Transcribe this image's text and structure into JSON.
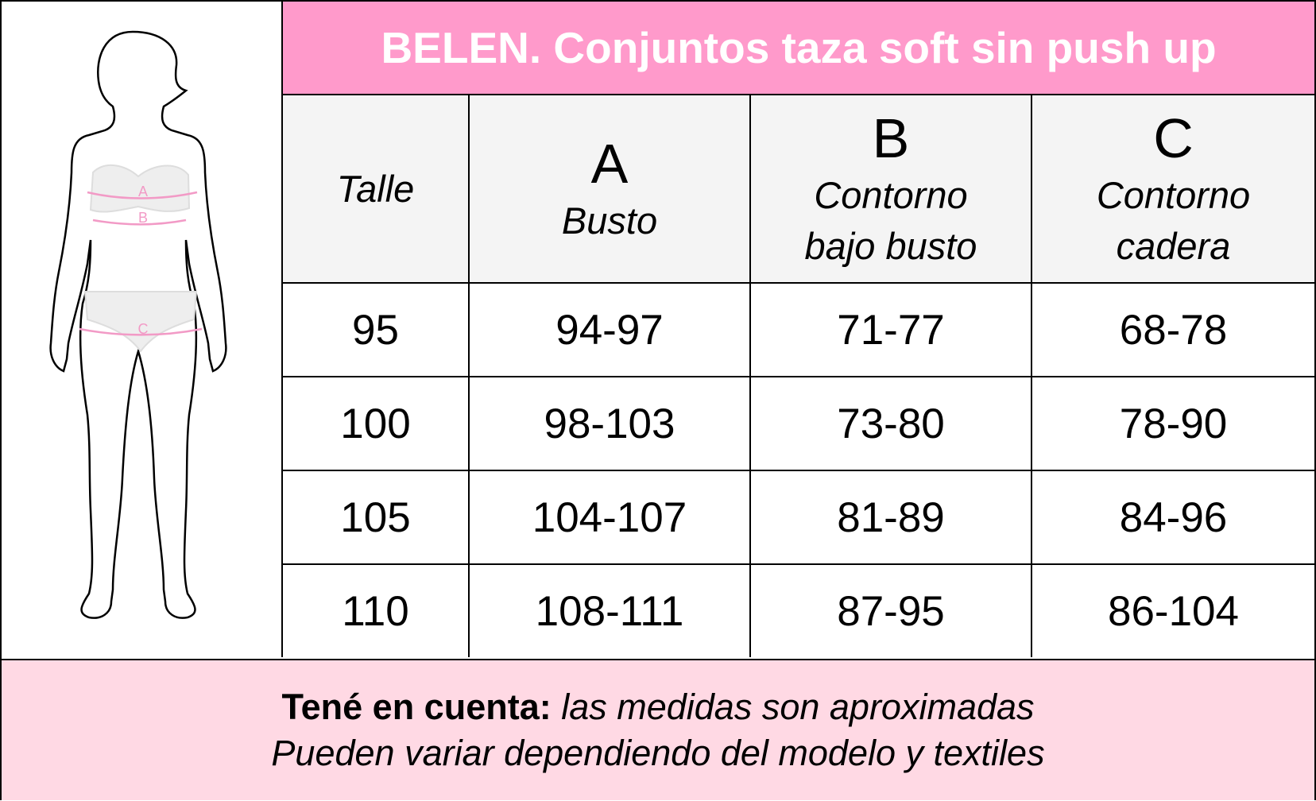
{
  "title": "BELEN. Conjuntos taza soft sin push up",
  "figure": {
    "labels": [
      "A",
      "B",
      "C"
    ],
    "accent_color": "#f29ac6"
  },
  "table": {
    "headers": [
      {
        "letter": "",
        "label": "Talle"
      },
      {
        "letter": "A",
        "label": "Busto"
      },
      {
        "letter": "B",
        "label": "Contorno bajo busto"
      },
      {
        "letter": "C",
        "label": "Contorno cadera"
      }
    ],
    "rows": [
      [
        "95",
        "94-97",
        "71-77",
        "68-78"
      ],
      [
        "100",
        "98-103",
        "73-80",
        "78-90"
      ],
      [
        "105",
        "104-107",
        "81-89",
        "84-96"
      ],
      [
        "110",
        "108-111",
        "87-95",
        "86-104"
      ]
    ]
  },
  "footer": {
    "bold": "Tené en cuenta:",
    "line1": " las medidas son aproximadas",
    "line2": "Pueden variar dependiendo del modelo y textiles"
  },
  "colors": {
    "header": "#ff9acb",
    "footer": "#ffd9e4",
    "header_row": "#f4f4f4"
  }
}
